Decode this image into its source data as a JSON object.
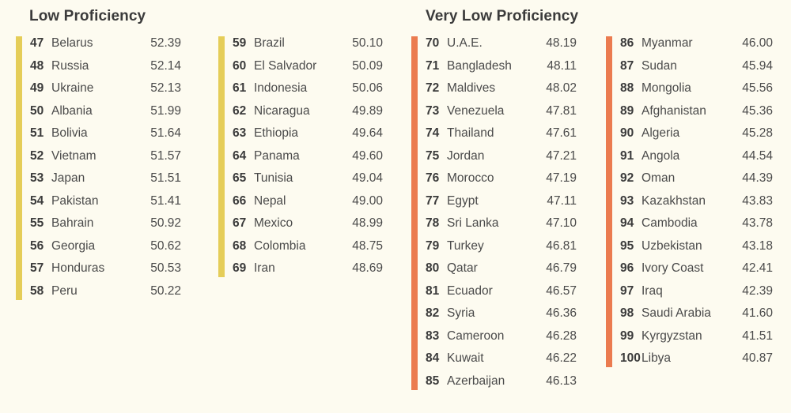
{
  "sections": [
    {
      "title": "Low Proficiency"
    },
    {
      "title": "Very Low Proficiency"
    }
  ],
  "colors": {
    "low": "#e5cd58",
    "very_low": "#eb7b4f",
    "background": "#fdfbf0"
  },
  "columns": [
    {
      "level": "low",
      "rows": [
        {
          "rank": "47",
          "country": "Belarus",
          "score": "52.39"
        },
        {
          "rank": "48",
          "country": "Russia",
          "score": "52.14"
        },
        {
          "rank": "49",
          "country": "Ukraine",
          "score": "52.13"
        },
        {
          "rank": "50",
          "country": "Albania",
          "score": "51.99"
        },
        {
          "rank": "51",
          "country": "Bolivia",
          "score": "51.64"
        },
        {
          "rank": "52",
          "country": "Vietnam",
          "score": "51.57"
        },
        {
          "rank": "53",
          "country": "Japan",
          "score": "51.51"
        },
        {
          "rank": "54",
          "country": "Pakistan",
          "score": "51.41"
        },
        {
          "rank": "55",
          "country": "Bahrain",
          "score": "50.92"
        },
        {
          "rank": "56",
          "country": "Georgia",
          "score": "50.62"
        },
        {
          "rank": "57",
          "country": "Honduras",
          "score": "50.53"
        },
        {
          "rank": "58",
          "country": "Peru",
          "score": "50.22"
        }
      ]
    },
    {
      "level": "low",
      "rows": [
        {
          "rank": "59",
          "country": "Brazil",
          "score": "50.10"
        },
        {
          "rank": "60",
          "country": "El Salvador",
          "score": "50.09"
        },
        {
          "rank": "61",
          "country": "Indonesia",
          "score": "50.06"
        },
        {
          "rank": "62",
          "country": "Nicaragua",
          "score": "49.89"
        },
        {
          "rank": "63",
          "country": "Ethiopia",
          "score": "49.64"
        },
        {
          "rank": "64",
          "country": "Panama",
          "score": "49.60"
        },
        {
          "rank": "65",
          "country": "Tunisia",
          "score": "49.04"
        },
        {
          "rank": "66",
          "country": "Nepal",
          "score": "49.00"
        },
        {
          "rank": "67",
          "country": "Mexico",
          "score": "48.99"
        },
        {
          "rank": "68",
          "country": "Colombia",
          "score": "48.75"
        },
        {
          "rank": "69",
          "country": "Iran",
          "score": "48.69"
        }
      ]
    },
    {
      "level": "very_low",
      "rows": [
        {
          "rank": "70",
          "country": "U.A.E.",
          "score": "48.19"
        },
        {
          "rank": "71",
          "country": "Bangladesh",
          "score": "48.11"
        },
        {
          "rank": "72",
          "country": "Maldives",
          "score": "48.02"
        },
        {
          "rank": "73",
          "country": "Venezuela",
          "score": "47.81"
        },
        {
          "rank": "74",
          "country": "Thailand",
          "score": "47.61"
        },
        {
          "rank": "75",
          "country": "Jordan",
          "score": "47.21"
        },
        {
          "rank": "76",
          "country": "Morocco",
          "score": "47.19"
        },
        {
          "rank": "77",
          "country": "Egypt",
          "score": "47.11"
        },
        {
          "rank": "78",
          "country": "Sri Lanka",
          "score": "47.10"
        },
        {
          "rank": "79",
          "country": "Turkey",
          "score": "46.81"
        },
        {
          "rank": "80",
          "country": "Qatar",
          "score": "46.79"
        },
        {
          "rank": "81",
          "country": "Ecuador",
          "score": "46.57"
        },
        {
          "rank": "82",
          "country": "Syria",
          "score": "46.36"
        },
        {
          "rank": "83",
          "country": "Cameroon",
          "score": "46.28"
        },
        {
          "rank": "84",
          "country": "Kuwait",
          "score": "46.22"
        },
        {
          "rank": "85",
          "country": "Azerbaijan",
          "score": "46.13"
        }
      ]
    },
    {
      "level": "very_low",
      "rows": [
        {
          "rank": "86",
          "country": "Myanmar",
          "score": "46.00"
        },
        {
          "rank": "87",
          "country": "Sudan",
          "score": "45.94"
        },
        {
          "rank": "88",
          "country": "Mongolia",
          "score": "45.56"
        },
        {
          "rank": "89",
          "country": "Afghanistan",
          "score": "45.36"
        },
        {
          "rank": "90",
          "country": "Algeria",
          "score": "45.28"
        },
        {
          "rank": "91",
          "country": "Angola",
          "score": "44.54"
        },
        {
          "rank": "92",
          "country": "Oman",
          "score": "44.39"
        },
        {
          "rank": "93",
          "country": "Kazakhstan",
          "score": "43.83"
        },
        {
          "rank": "94",
          "country": "Cambodia",
          "score": "43.78"
        },
        {
          "rank": "95",
          "country": "Uzbekistan",
          "score": "43.18"
        },
        {
          "rank": "96",
          "country": "Ivory Coast",
          "score": "42.41"
        },
        {
          "rank": "97",
          "country": "Iraq",
          "score": "42.39"
        },
        {
          "rank": "98",
          "country": "Saudi Arabia",
          "score": "41.60"
        },
        {
          "rank": "99",
          "country": "Kyrgyzstan",
          "score": "41.51"
        },
        {
          "rank": "100",
          "country": "Libya",
          "score": "40.87"
        }
      ]
    }
  ]
}
